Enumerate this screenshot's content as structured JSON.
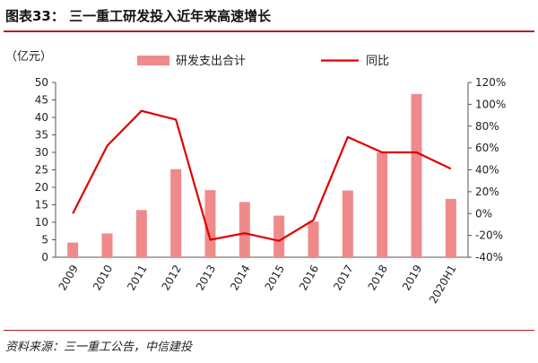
{
  "header": {
    "title": "图表33：  三一重工研发投入近年来高速增长"
  },
  "footer": {
    "source": "资料来源：三一重工公告，中信建投"
  },
  "colors": {
    "accent_rule": "#b71c1c",
    "bar": "#f08a8a",
    "line": "#e00000"
  },
  "chart_data": {
    "type": "bar",
    "categories": [
      "2009",
      "2010",
      "2011",
      "2012",
      "2013",
      "2014",
      "2015",
      "2016",
      "2017",
      "2018",
      "2019",
      "2020H1"
    ],
    "series": [
      {
        "name": "研发支出合计",
        "type": "bar",
        "axis": "left",
        "values": [
          4.2,
          6.8,
          13.5,
          25.2,
          19.2,
          15.8,
          11.9,
          10.2,
          19.1,
          30.0,
          46.7,
          16.7
        ]
      },
      {
        "name": "同比",
        "type": "line",
        "axis": "right",
        "values": [
          0,
          62,
          94,
          86,
          -24,
          -18,
          -25,
          -6,
          70,
          56,
          56,
          41
        ]
      }
    ],
    "y_left": {
      "unit_label": "（亿元）",
      "ylim": [
        0,
        50
      ],
      "ticks": [
        "0",
        "5",
        "10",
        "15",
        "20",
        "25",
        "30",
        "35",
        "40",
        "45",
        "50"
      ]
    },
    "y_right": {
      "ylim": [
        -40,
        120
      ],
      "ticks": [
        "-40%",
        "-20%",
        "0%",
        "20%",
        "40%",
        "60%",
        "80%",
        "100%",
        "120%"
      ]
    },
    "legend": {
      "placement": "top",
      "entries": [
        "研发支出合计",
        "同比"
      ]
    },
    "grid": false
  }
}
